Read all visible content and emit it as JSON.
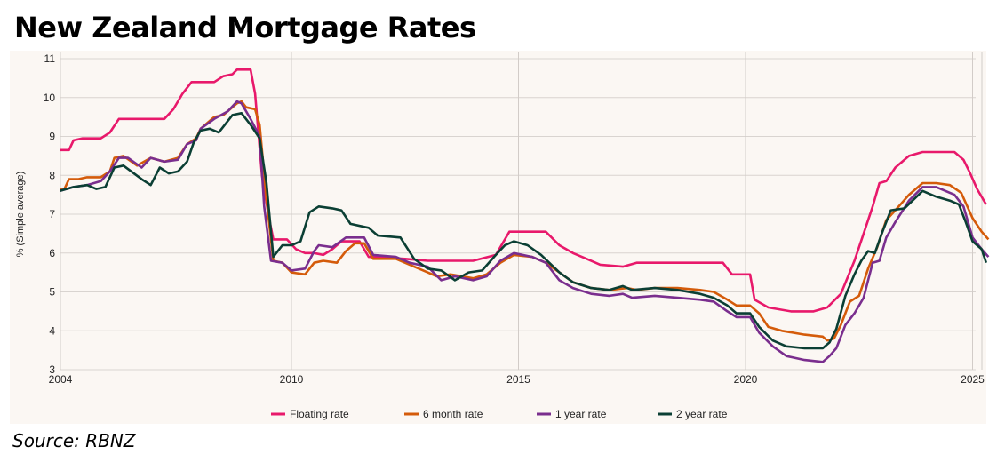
{
  "title": "New Zealand Mortgage Rates",
  "source": "Source: RBNZ",
  "chart_data": {
    "type": "line",
    "title": "New Zealand Mortgage Rates",
    "xlabel": "",
    "ylabel": "% (Simple average)",
    "xlim": [
      2004.9,
      2025.4
    ],
    "ylim": [
      3,
      11
    ],
    "x_ticks": [
      {
        "v": 2004.9,
        "label": "2004"
      },
      {
        "v": 2010,
        "label": "2010"
      },
      {
        "v": 2015,
        "label": "2015"
      },
      {
        "v": 2020,
        "label": "2020"
      },
      {
        "v": 2025,
        "label": "2025"
      }
    ],
    "y_ticks": [
      3,
      4,
      5,
      6,
      7,
      8,
      9,
      10,
      11
    ],
    "grid": true,
    "legend_position": "bottom",
    "series": [
      {
        "name": "Floating rate",
        "color": "#e8196b",
        "points": [
          [
            2004.9,
            8.65
          ],
          [
            2005.1,
            8.65
          ],
          [
            2005.2,
            8.9
          ],
          [
            2005.4,
            8.95
          ],
          [
            2005.8,
            8.95
          ],
          [
            2006.0,
            9.1
          ],
          [
            2006.2,
            9.45
          ],
          [
            2007.2,
            9.45
          ],
          [
            2007.4,
            9.7
          ],
          [
            2007.6,
            10.1
          ],
          [
            2007.8,
            10.4
          ],
          [
            2008.3,
            10.4
          ],
          [
            2008.5,
            10.55
          ],
          [
            2008.7,
            10.6
          ],
          [
            2008.8,
            10.72
          ],
          [
            2009.1,
            10.72
          ],
          [
            2009.2,
            10.1
          ],
          [
            2009.35,
            8.0
          ],
          [
            2009.5,
            6.95
          ],
          [
            2009.6,
            6.35
          ],
          [
            2009.9,
            6.35
          ],
          [
            2010.1,
            6.1
          ],
          [
            2010.3,
            6.0
          ],
          [
            2010.5,
            6.0
          ],
          [
            2010.7,
            5.95
          ],
          [
            2010.9,
            6.1
          ],
          [
            2011.1,
            6.3
          ],
          [
            2011.5,
            6.3
          ],
          [
            2011.7,
            5.9
          ],
          [
            2012.5,
            5.85
          ],
          [
            2013.0,
            5.8
          ],
          [
            2014.0,
            5.8
          ],
          [
            2014.5,
            5.95
          ],
          [
            2014.8,
            6.55
          ],
          [
            2015.6,
            6.55
          ],
          [
            2015.9,
            6.2
          ],
          [
            2016.2,
            6.0
          ],
          [
            2016.5,
            5.85
          ],
          [
            2016.8,
            5.7
          ],
          [
            2017.3,
            5.65
          ],
          [
            2017.6,
            5.75
          ],
          [
            2018.5,
            5.75
          ],
          [
            2019.5,
            5.75
          ],
          [
            2019.7,
            5.45
          ],
          [
            2020.1,
            5.45
          ],
          [
            2020.2,
            4.8
          ],
          [
            2020.5,
            4.6
          ],
          [
            2021.0,
            4.5
          ],
          [
            2021.5,
            4.5
          ],
          [
            2021.8,
            4.6
          ],
          [
            2022.1,
            4.95
          ],
          [
            2022.4,
            5.8
          ],
          [
            2022.6,
            6.5
          ],
          [
            2022.8,
            7.2
          ],
          [
            2022.95,
            7.8
          ],
          [
            2023.1,
            7.85
          ],
          [
            2023.3,
            8.2
          ],
          [
            2023.6,
            8.5
          ],
          [
            2023.9,
            8.6
          ],
          [
            2024.6,
            8.6
          ],
          [
            2024.8,
            8.4
          ],
          [
            2024.95,
            8.05
          ],
          [
            2025.1,
            7.65
          ],
          [
            2025.3,
            7.25
          ]
        ]
      },
      {
        "name": "6 month rate",
        "color": "#d45b0a",
        "points": [
          [
            2004.9,
            7.65
          ],
          [
            2005.0,
            7.65
          ],
          [
            2005.1,
            7.9
          ],
          [
            2005.3,
            7.9
          ],
          [
            2005.5,
            7.95
          ],
          [
            2005.8,
            7.95
          ],
          [
            2006.0,
            8.1
          ],
          [
            2006.1,
            8.45
          ],
          [
            2006.3,
            8.5
          ],
          [
            2006.6,
            8.25
          ],
          [
            2006.9,
            8.45
          ],
          [
            2007.2,
            8.35
          ],
          [
            2007.5,
            8.45
          ],
          [
            2007.7,
            8.8
          ],
          [
            2007.9,
            8.95
          ],
          [
            2008.0,
            9.2
          ],
          [
            2008.3,
            9.5
          ],
          [
            2008.5,
            9.55
          ],
          [
            2008.8,
            9.85
          ],
          [
            2008.9,
            9.9
          ],
          [
            2009.0,
            9.75
          ],
          [
            2009.2,
            9.7
          ],
          [
            2009.3,
            9.3
          ],
          [
            2009.45,
            7.4
          ],
          [
            2009.6,
            5.8
          ],
          [
            2009.8,
            5.75
          ],
          [
            2010.0,
            5.5
          ],
          [
            2010.3,
            5.45
          ],
          [
            2010.5,
            5.75
          ],
          [
            2010.7,
            5.8
          ],
          [
            2011.0,
            5.75
          ],
          [
            2011.2,
            6.05
          ],
          [
            2011.4,
            6.25
          ],
          [
            2011.6,
            6.25
          ],
          [
            2011.8,
            5.85
          ],
          [
            2012.3,
            5.85
          ],
          [
            2012.7,
            5.65
          ],
          [
            2013.0,
            5.5
          ],
          [
            2013.2,
            5.4
          ],
          [
            2013.5,
            5.45
          ],
          [
            2014.0,
            5.35
          ],
          [
            2014.3,
            5.45
          ],
          [
            2014.6,
            5.75
          ],
          [
            2014.9,
            5.95
          ],
          [
            2015.3,
            5.9
          ],
          [
            2015.6,
            5.75
          ],
          [
            2015.9,
            5.5
          ],
          [
            2016.2,
            5.25
          ],
          [
            2016.6,
            5.1
          ],
          [
            2017.0,
            5.05
          ],
          [
            2017.4,
            5.1
          ],
          [
            2017.6,
            5.05
          ],
          [
            2018.0,
            5.1
          ],
          [
            2018.5,
            5.1
          ],
          [
            2019.0,
            5.05
          ],
          [
            2019.3,
            5.0
          ],
          [
            2019.6,
            4.8
          ],
          [
            2019.8,
            4.65
          ],
          [
            2020.1,
            4.65
          ],
          [
            2020.3,
            4.45
          ],
          [
            2020.5,
            4.1
          ],
          [
            2020.8,
            4.0
          ],
          [
            2021.3,
            3.9
          ],
          [
            2021.7,
            3.85
          ],
          [
            2021.8,
            3.75
          ],
          [
            2021.95,
            3.8
          ],
          [
            2022.1,
            4.15
          ],
          [
            2022.3,
            4.75
          ],
          [
            2022.5,
            4.9
          ],
          [
            2022.7,
            5.6
          ],
          [
            2022.9,
            6.15
          ],
          [
            2023.1,
            6.85
          ],
          [
            2023.3,
            7.1
          ],
          [
            2023.6,
            7.5
          ],
          [
            2023.9,
            7.8
          ],
          [
            2024.2,
            7.8
          ],
          [
            2024.5,
            7.75
          ],
          [
            2024.75,
            7.55
          ],
          [
            2025.0,
            6.9
          ],
          [
            2025.2,
            6.55
          ],
          [
            2025.35,
            6.35
          ]
        ]
      },
      {
        "name": "1 year rate",
        "color": "#7a2e8e",
        "points": [
          [
            2004.9,
            7.6
          ],
          [
            2005.2,
            7.7
          ],
          [
            2005.5,
            7.75
          ],
          [
            2005.8,
            7.85
          ],
          [
            2006.0,
            8.1
          ],
          [
            2006.2,
            8.45
          ],
          [
            2006.4,
            8.45
          ],
          [
            2006.7,
            8.2
          ],
          [
            2006.9,
            8.45
          ],
          [
            2007.2,
            8.35
          ],
          [
            2007.5,
            8.4
          ],
          [
            2007.7,
            8.8
          ],
          [
            2007.9,
            8.9
          ],
          [
            2008.0,
            9.2
          ],
          [
            2008.3,
            9.45
          ],
          [
            2008.6,
            9.65
          ],
          [
            2008.8,
            9.9
          ],
          [
            2008.9,
            9.85
          ],
          [
            2009.1,
            9.45
          ],
          [
            2009.3,
            9.0
          ],
          [
            2009.4,
            7.2
          ],
          [
            2009.55,
            5.8
          ],
          [
            2009.8,
            5.75
          ],
          [
            2010.0,
            5.55
          ],
          [
            2010.3,
            5.6
          ],
          [
            2010.5,
            6.05
          ],
          [
            2010.6,
            6.2
          ],
          [
            2010.9,
            6.15
          ],
          [
            2011.2,
            6.4
          ],
          [
            2011.6,
            6.4
          ],
          [
            2011.8,
            5.95
          ],
          [
            2012.3,
            5.9
          ],
          [
            2012.6,
            5.75
          ],
          [
            2013.0,
            5.65
          ],
          [
            2013.3,
            5.3
          ],
          [
            2013.6,
            5.4
          ],
          [
            2014.0,
            5.3
          ],
          [
            2014.3,
            5.4
          ],
          [
            2014.6,
            5.8
          ],
          [
            2014.9,
            6.0
          ],
          [
            2015.3,
            5.9
          ],
          [
            2015.6,
            5.75
          ],
          [
            2015.9,
            5.3
          ],
          [
            2016.2,
            5.1
          ],
          [
            2016.6,
            4.95
          ],
          [
            2017.0,
            4.9
          ],
          [
            2017.3,
            4.95
          ],
          [
            2017.5,
            4.85
          ],
          [
            2018.0,
            4.9
          ],
          [
            2018.5,
            4.85
          ],
          [
            2019.0,
            4.8
          ],
          [
            2019.3,
            4.75
          ],
          [
            2019.6,
            4.5
          ],
          [
            2019.8,
            4.35
          ],
          [
            2020.1,
            4.35
          ],
          [
            2020.3,
            3.95
          ],
          [
            2020.6,
            3.6
          ],
          [
            2020.9,
            3.35
          ],
          [
            2021.3,
            3.25
          ],
          [
            2021.7,
            3.2
          ],
          [
            2021.85,
            3.35
          ],
          [
            2022.0,
            3.55
          ],
          [
            2022.2,
            4.15
          ],
          [
            2022.4,
            4.45
          ],
          [
            2022.6,
            4.85
          ],
          [
            2022.8,
            5.75
          ],
          [
            2022.95,
            5.8
          ],
          [
            2023.1,
            6.4
          ],
          [
            2023.3,
            6.8
          ],
          [
            2023.6,
            7.35
          ],
          [
            2023.9,
            7.7
          ],
          [
            2024.2,
            7.7
          ],
          [
            2024.6,
            7.5
          ],
          [
            2024.8,
            7.2
          ],
          [
            2025.0,
            6.4
          ],
          [
            2025.2,
            6.1
          ],
          [
            2025.35,
            5.9
          ]
        ]
      },
      {
        "name": "2 year rate",
        "color": "#0b3f34",
        "points": [
          [
            2004.9,
            7.6
          ],
          [
            2005.2,
            7.7
          ],
          [
            2005.5,
            7.75
          ],
          [
            2005.7,
            7.65
          ],
          [
            2005.9,
            7.7
          ],
          [
            2006.1,
            8.2
          ],
          [
            2006.3,
            8.25
          ],
          [
            2006.7,
            7.9
          ],
          [
            2006.9,
            7.75
          ],
          [
            2007.1,
            8.2
          ],
          [
            2007.3,
            8.05
          ],
          [
            2007.5,
            8.1
          ],
          [
            2007.7,
            8.35
          ],
          [
            2007.85,
            8.85
          ],
          [
            2008.0,
            9.15
          ],
          [
            2008.2,
            9.2
          ],
          [
            2008.4,
            9.1
          ],
          [
            2008.7,
            9.55
          ],
          [
            2008.9,
            9.6
          ],
          [
            2009.1,
            9.3
          ],
          [
            2009.3,
            8.95
          ],
          [
            2009.45,
            7.8
          ],
          [
            2009.6,
            5.9
          ],
          [
            2009.8,
            6.2
          ],
          [
            2010.0,
            6.2
          ],
          [
            2010.2,
            6.3
          ],
          [
            2010.4,
            7.05
          ],
          [
            2010.6,
            7.2
          ],
          [
            2010.9,
            7.15
          ],
          [
            2011.1,
            7.1
          ],
          [
            2011.3,
            6.75
          ],
          [
            2011.7,
            6.65
          ],
          [
            2011.9,
            6.45
          ],
          [
            2012.4,
            6.4
          ],
          [
            2012.7,
            5.85
          ],
          [
            2013.0,
            5.6
          ],
          [
            2013.3,
            5.55
          ],
          [
            2013.6,
            5.3
          ],
          [
            2013.9,
            5.5
          ],
          [
            2014.2,
            5.55
          ],
          [
            2014.5,
            5.95
          ],
          [
            2014.7,
            6.2
          ],
          [
            2014.9,
            6.3
          ],
          [
            2015.2,
            6.2
          ],
          [
            2015.5,
            5.95
          ],
          [
            2015.9,
            5.5
          ],
          [
            2016.2,
            5.25
          ],
          [
            2016.6,
            5.1
          ],
          [
            2017.0,
            5.05
          ],
          [
            2017.3,
            5.15
          ],
          [
            2017.5,
            5.05
          ],
          [
            2018.0,
            5.1
          ],
          [
            2018.5,
            5.05
          ],
          [
            2019.0,
            4.95
          ],
          [
            2019.3,
            4.85
          ],
          [
            2019.6,
            4.65
          ],
          [
            2019.8,
            4.45
          ],
          [
            2020.1,
            4.45
          ],
          [
            2020.3,
            4.1
          ],
          [
            2020.6,
            3.75
          ],
          [
            2020.9,
            3.6
          ],
          [
            2021.3,
            3.55
          ],
          [
            2021.7,
            3.55
          ],
          [
            2021.85,
            3.7
          ],
          [
            2022.0,
            4.05
          ],
          [
            2022.2,
            4.9
          ],
          [
            2022.4,
            5.45
          ],
          [
            2022.55,
            5.8
          ],
          [
            2022.7,
            6.05
          ],
          [
            2022.85,
            6.0
          ],
          [
            2023.0,
            6.5
          ],
          [
            2023.2,
            7.1
          ],
          [
            2023.5,
            7.15
          ],
          [
            2023.9,
            7.6
          ],
          [
            2024.2,
            7.45
          ],
          [
            2024.5,
            7.35
          ],
          [
            2024.7,
            7.25
          ],
          [
            2024.85,
            6.8
          ],
          [
            2025.0,
            6.3
          ],
          [
            2025.2,
            6.1
          ],
          [
            2025.3,
            5.75
          ]
        ]
      }
    ]
  }
}
